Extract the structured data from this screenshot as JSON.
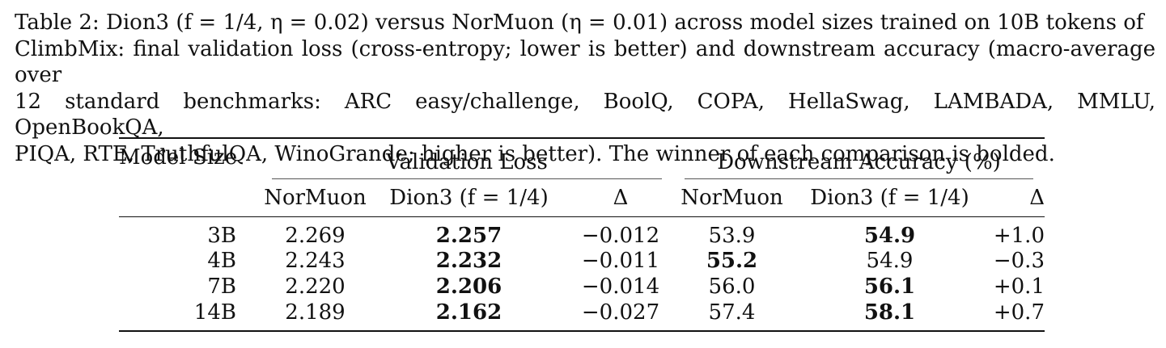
{
  "caption": {
    "line1": "Table 2: Dion3 (f = 1/4, η = 0.02) versus NorMuon (η = 0.01) across model sizes trained on 10B tokens of",
    "line2": "ClimbMix: final validation loss (cross-entropy; lower is better) and downstream accuracy (macro-average over",
    "line3": "12 standard benchmarks: ARC easy/challenge, BoolQ, COPA, HellaSwag, LAMBADA, MMLU, OpenBookQA,",
    "line4": "PIQA, RTE, TruthfulQA, WinoGrande; higher is better). The winner of each comparison is bolded."
  },
  "table": {
    "model_size_header": "Model Size",
    "group_headers": [
      "Validation Loss",
      "Downstream Accuracy (%)"
    ],
    "sub_headers": [
      "NorMuon",
      "Dion3 (f = 1/4)",
      "Δ",
      "NorMuon",
      "Dion3 (f = 1/4)",
      "Δ"
    ],
    "rows": [
      {
        "size": "3B",
        "val_normuon": "2.269",
        "val_dion3": "2.257",
        "val_delta": "−0.012",
        "acc_normuon": "53.9",
        "acc_dion3": "54.9",
        "acc_delta": "+1.0",
        "val_winner": "dion3",
        "acc_winner": "dion3"
      },
      {
        "size": "4B",
        "val_normuon": "2.243",
        "val_dion3": "2.232",
        "val_delta": "−0.011",
        "acc_normuon": "55.2",
        "acc_dion3": "54.9",
        "acc_delta": "−0.3",
        "val_winner": "dion3",
        "acc_winner": "normuon"
      },
      {
        "size": "7B",
        "val_normuon": "2.220",
        "val_dion3": "2.206",
        "val_delta": "−0.014",
        "acc_normuon": "56.0",
        "acc_dion3": "56.1",
        "acc_delta": "+0.1",
        "val_winner": "dion3",
        "acc_winner": "dion3"
      },
      {
        "size": "14B",
        "val_normuon": "2.189",
        "val_dion3": "2.162",
        "val_delta": "−0.027",
        "acc_normuon": "57.4",
        "acc_dion3": "58.1",
        "acc_delta": "+0.7",
        "val_winner": "dion3",
        "acc_winner": "dion3"
      }
    ]
  }
}
